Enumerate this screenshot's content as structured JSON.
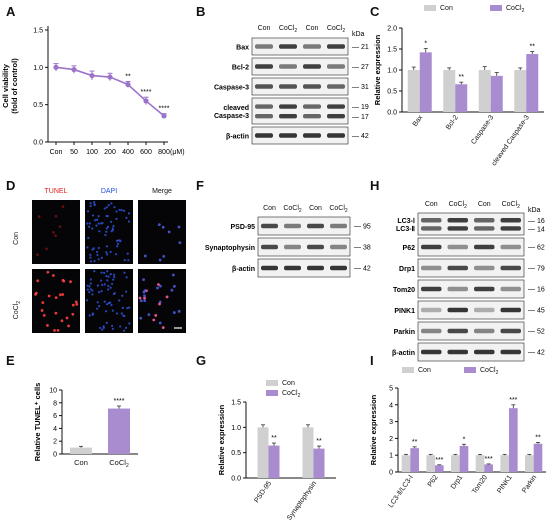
{
  "panels": {
    "A": "A",
    "B": "B",
    "C": "C",
    "D": "D",
    "E": "E",
    "F": "F",
    "G": "G",
    "H": "H",
    "I": "I"
  },
  "colors": {
    "con": "#d0d0d0",
    "cocl2": "#a98bd0",
    "line": "#9b73c9",
    "blot": "#2b2b2b"
  },
  "chart_data": [
    {
      "id": "A",
      "type": "line",
      "x": [
        "Con",
        "50",
        "100",
        "200",
        "400",
        "600",
        "800"
      ],
      "xunit": "(μM)",
      "series": [
        {
          "values": [
            1.0,
            0.97,
            0.89,
            0.87,
            0.77,
            0.55,
            0.35
          ],
          "errors": [
            0.05,
            0.05,
            0.06,
            0.05,
            0.04,
            0.05,
            0.03
          ]
        }
      ],
      "significance": [
        "",
        "",
        "",
        "",
        "**",
        "****",
        "****"
      ],
      "ylabel_line1": "Cell viability",
      "ylabel_line2": "(fold of control)",
      "ylim": [
        0,
        1.5
      ],
      "yticks": [
        "0.0",
        "0.5",
        "1.0",
        "1.5"
      ]
    },
    {
      "id": "C",
      "type": "bar",
      "categories": [
        "Bax",
        "Bcl-2",
        "Caspase-3",
        "cleaved Caspase-3"
      ],
      "series": [
        {
          "name": "Con",
          "values": [
            1.0,
            1.0,
            1.0,
            1.0
          ],
          "errors": [
            0.07,
            0.05,
            0.08,
            0.05
          ]
        },
        {
          "name": "CoCl",
          "values": [
            1.42,
            0.66,
            0.86,
            1.38
          ],
          "errors": [
            0.09,
            0.05,
            0.08,
            0.06
          ]
        }
      ],
      "significance": [
        "*",
        "**",
        "",
        "**"
      ],
      "ylabel": "Relative expression",
      "ylim": [
        0,
        2.0
      ],
      "yticks": [
        "0.0",
        "0.5",
        "1.0",
        "1.5",
        "2.0"
      ]
    },
    {
      "id": "E",
      "type": "bar",
      "categories": [
        "Con",
        "CoCl"
      ],
      "values": [
        1.0,
        7.1
      ],
      "errors": [
        0.2,
        0.4
      ],
      "significance": [
        "",
        "****"
      ],
      "ylabel": "Relative TUNEL⁺ cells",
      "ylim": [
        0,
        10
      ],
      "yticks": [
        "0",
        "2",
        "4",
        "6",
        "8",
        "10"
      ]
    },
    {
      "id": "G",
      "type": "bar",
      "categories": [
        "PSD-95",
        "Synaptophysin"
      ],
      "series": [
        {
          "name": "Con",
          "values": [
            1.0,
            1.0
          ],
          "errors": [
            0.05,
            0.05
          ]
        },
        {
          "name": "CoCl",
          "values": [
            0.64,
            0.58
          ],
          "errors": [
            0.05,
            0.05
          ]
        }
      ],
      "significance": [
        "**",
        "**"
      ],
      "ylabel": "Relative expression",
      "ylim": [
        0,
        1.5
      ],
      "yticks": [
        "0.0",
        "0.5",
        "1.0",
        "1.5"
      ]
    },
    {
      "id": "I",
      "type": "bar",
      "categories": [
        "LC3-Ⅱ/LC3-Ⅰ",
        "P62",
        "Drp1",
        "Tom20",
        "PINK1",
        "Parkin"
      ],
      "series": [
        {
          "name": "Con",
          "values": [
            1.0,
            1.0,
            1.0,
            1.0,
            1.0,
            1.0
          ],
          "errors": [
            0.05,
            0.05,
            0.05,
            0.05,
            0.05,
            0.05
          ]
        },
        {
          "name": "CoCl",
          "values": [
            1.42,
            0.4,
            1.55,
            0.45,
            3.8,
            1.68
          ],
          "errors": [
            0.08,
            0.03,
            0.1,
            0.03,
            0.2,
            0.08
          ]
        }
      ],
      "significance": [
        "**",
        "***",
        "*",
        "***",
        "***",
        "**"
      ],
      "ylabel": "Relative expression",
      "ylim": [
        0,
        5
      ],
      "yticks": [
        "0",
        "1",
        "2",
        "3",
        "4",
        "5"
      ]
    }
  ],
  "blot_B": {
    "lanes": [
      "Con",
      "CoCl",
      "Con",
      "CoCl"
    ],
    "kda": "kDa",
    "rows": [
      {
        "label": "Bax",
        "kda": "21"
      },
      {
        "label": "Bcl-2",
        "kda": "27"
      },
      {
        "label": "Caspase-3",
        "kda": "31"
      },
      {
        "label": "cleaved\nCaspase-3",
        "kda": "19\n17"
      },
      {
        "label": "β-actin",
        "kda": "42"
      }
    ]
  },
  "blot_F": {
    "lanes": [
      "Con",
      "CoCl",
      "Con",
      "CoCl"
    ],
    "rows": [
      {
        "label": "PSD-95",
        "kda": "95"
      },
      {
        "label": "Synaptophysin",
        "kda": "38"
      },
      {
        "label": "β-actin",
        "kda": "42"
      }
    ]
  },
  "blot_H": {
    "lanes": [
      "Con",
      "CoCl",
      "Con",
      "CoCl"
    ],
    "kda": "kDa",
    "rows": [
      {
        "label": "LC3-Ⅰ\nLC3-Ⅱ",
        "kda": "16\n14"
      },
      {
        "label": "P62",
        "kda": "62"
      },
      {
        "label": "Drp1",
        "kda": "79"
      },
      {
        "label": "Tom20",
        "kda": "16"
      },
      {
        "label": "PINK1",
        "kda": "45"
      },
      {
        "label": "Parkin",
        "kda": "52"
      },
      {
        "label": "β-actin",
        "kda": "42"
      }
    ]
  },
  "micro_D": {
    "columns": [
      "TUNEL",
      "DAPI",
      "Merge"
    ],
    "rows": [
      "Con",
      "CoCl"
    ]
  }
}
